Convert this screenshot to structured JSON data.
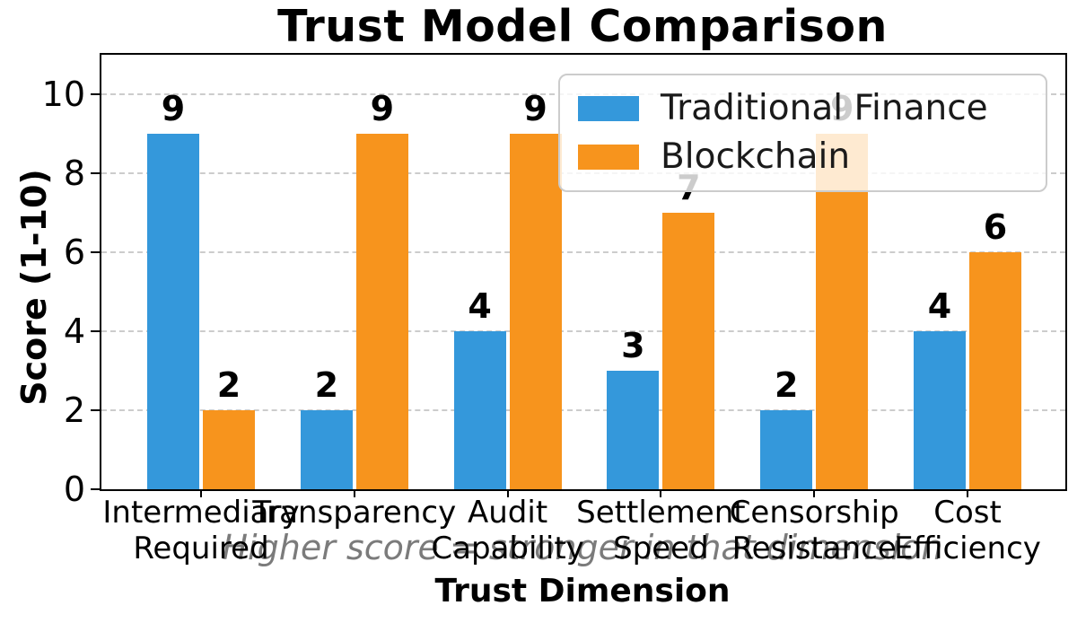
{
  "title": "Trust Model Comparison",
  "axes": {
    "ylabel": "Score (1-10)",
    "xlabel": "Trust Dimension"
  },
  "annotation": "Higher score = stronger in that dimension",
  "legend": {
    "position": "upper right",
    "items": [
      {
        "label": "Traditional Finance",
        "color": "#3498db"
      },
      {
        "label": "Blockchain",
        "color": "#f7941d"
      }
    ]
  },
  "chart_data": {
    "type": "bar",
    "title": "Trust Model Comparison",
    "xlabel": "Trust Dimension",
    "ylabel": "Score (1-10)",
    "categories": [
      "Intermediary\nRequired",
      "Transparency",
      "Audit\nCapability",
      "Settlement\nSpeed",
      "Censorship\nResistance",
      "Cost\nEfficiency"
    ],
    "series": [
      {
        "name": "Traditional Finance",
        "color": "#3498db",
        "values": [
          9,
          2,
          4,
          3,
          2,
          4
        ]
      },
      {
        "name": "Blockchain",
        "color": "#f7941d",
        "values": [
          2,
          9,
          9,
          7,
          9,
          6
        ]
      }
    ],
    "yticks": [
      0,
      2,
      4,
      6,
      8,
      10
    ],
    "ylim": [
      0,
      11
    ],
    "grid": "horizontal-dashed",
    "bar_value_labels": true,
    "legend_position": "upper right",
    "annotation": "Higher score = stronger in that dimension"
  }
}
